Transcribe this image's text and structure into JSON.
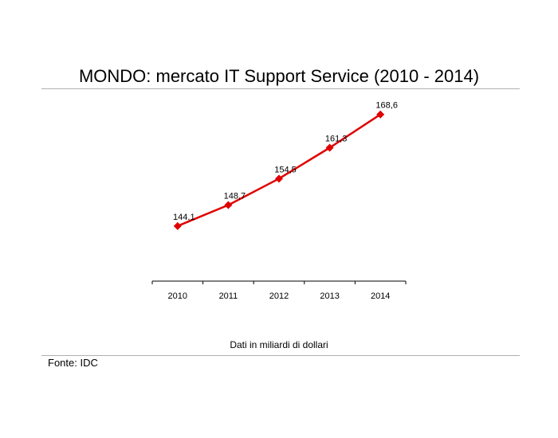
{
  "header": {
    "title": "MONDO: mercato IT Support Service (2010 - 2014)"
  },
  "footer": {
    "note": "Dati in miliardi di dollari",
    "source": "Fonte: IDC"
  },
  "chart_data": {
    "type": "line",
    "title": "MONDO: mercato IT Support Service (2010 - 2014)",
    "categories": [
      "2010",
      "2011",
      "2012",
      "2013",
      "2014"
    ],
    "series": [
      {
        "values": [
          144.1,
          148.7,
          154.5,
          161.3,
          168.6
        ],
        "color": "#e00000"
      }
    ],
    "data_labels": [
      "144,1",
      "148,7",
      "154,5",
      "161,3",
      "168,6"
    ],
    "ylim": [
      132,
      171
    ],
    "grid": false,
    "legend": "none",
    "xlabel": "",
    "ylabel": ""
  }
}
